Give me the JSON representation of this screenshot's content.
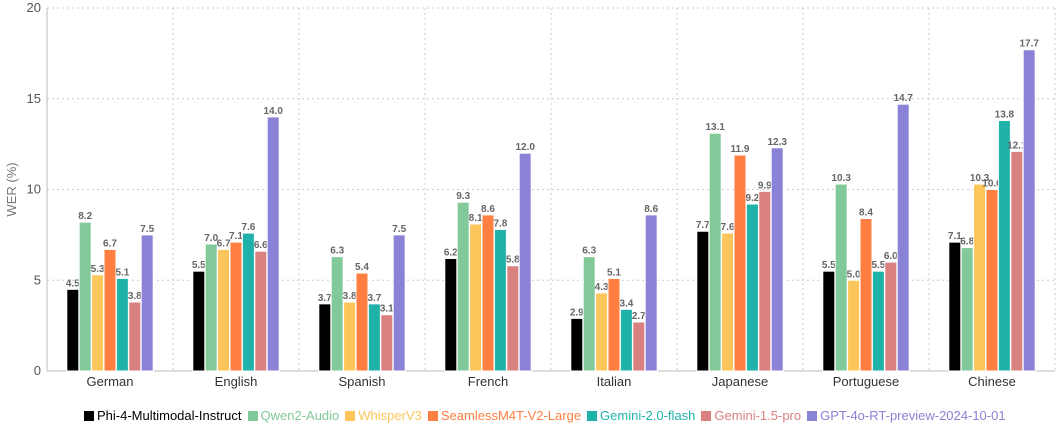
{
  "chart_data": {
    "type": "bar",
    "ylabel": "WER (%)",
    "xlabel": "",
    "ylim": [
      0,
      20
    ],
    "yticks": [
      0,
      5,
      10,
      15,
      20
    ],
    "grid": true,
    "legend_position": "bottom",
    "categories": [
      "German",
      "English",
      "Spanish",
      "French",
      "Italian",
      "Japanese",
      "Portuguese",
      "Chinese"
    ],
    "series": [
      {
        "name": "Phi-4-Multimodal-Instruct",
        "color": "#000000",
        "values": [
          4.5,
          5.5,
          3.7,
          6.2,
          2.9,
          7.7,
          5.5,
          7.1
        ]
      },
      {
        "name": "Qwen2-Audio",
        "color": "#82c99a",
        "values": [
          8.2,
          7.0,
          6.3,
          9.3,
          6.3,
          13.1,
          10.3,
          6.8
        ]
      },
      {
        "name": "WhisperV3",
        "color": "#fdc65a",
        "values": [
          5.3,
          6.7,
          3.8,
          8.1,
          4.3,
          7.6,
          5.0,
          10.3
        ]
      },
      {
        "name": "SeamlessM4T-V2-Large",
        "color": "#ff7f43",
        "values": [
          6.7,
          7.1,
          5.4,
          8.6,
          5.1,
          11.9,
          8.4,
          10.0
        ]
      },
      {
        "name": "Gemini-2.0-flash",
        "color": "#20b2aa",
        "values": [
          5.1,
          7.6,
          3.7,
          7.8,
          3.4,
          9.2,
          5.5,
          13.8
        ]
      },
      {
        "name": "Gemini-1.5-pro",
        "color": "#d98080",
        "values": [
          3.8,
          6.6,
          3.1,
          5.8,
          2.7,
          9.9,
          6.0,
          12.1
        ]
      },
      {
        "name": "GPT-4o-RT-preview-2024-10-01",
        "color": "#8a82d6",
        "values": [
          7.5,
          14.0,
          7.5,
          12.0,
          8.6,
          12.3,
          14.7,
          17.7
        ]
      }
    ]
  }
}
